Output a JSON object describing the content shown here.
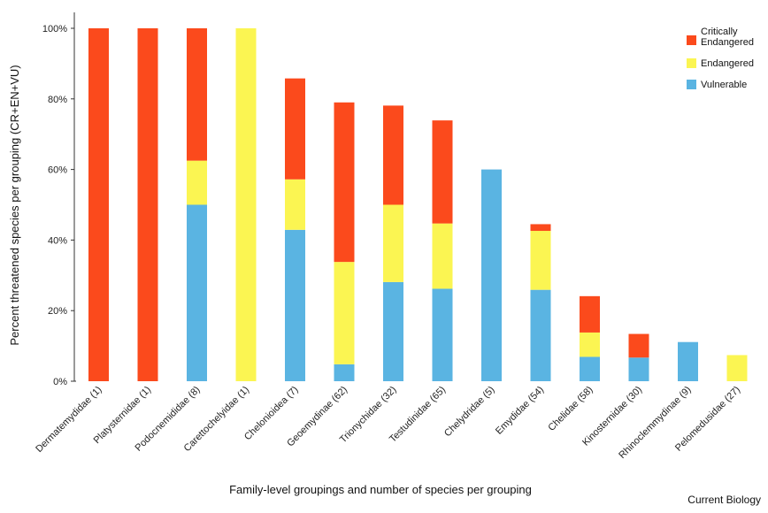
{
  "chart_data": {
    "type": "bar",
    "stacked": true,
    "xlabel": "Family-level groupings and number of species per grouping",
    "ylabel": "Percent threatened species per grouping (CR+EN+VU)",
    "ylim": [
      0,
      100
    ],
    "yticks": [
      "0%",
      "20%",
      "40%",
      "60%",
      "80%",
      "100%"
    ],
    "categories": [
      "Dermatemydidae (1)",
      "Platysternidae (1)",
      "Podocnemididae (8)",
      "Carettochelyidae (1)",
      "Chelonioidea (7)",
      "Geoemydinae (62)",
      "Trionychidae (32)",
      "Testudinidae (65)",
      "Chelydridae (5)",
      "Emydidae (54)",
      "Chelidae (58)",
      "Kinosternidae (30)",
      "Rhinoclemmydinae (9)",
      "Pelomedusidae (27)"
    ],
    "series": [
      {
        "name": "Vulnerable",
        "color": "#5ab4e2",
        "values": [
          0,
          0,
          50,
          0,
          42.9,
          4.8,
          28.1,
          26.2,
          60,
          25.9,
          6.9,
          6.7,
          11.1,
          0
        ]
      },
      {
        "name": "Endangered",
        "color": "#fbf552",
        "values": [
          0,
          0,
          12.5,
          100,
          14.3,
          29,
          21.9,
          18.5,
          0,
          16.7,
          6.9,
          0,
          0,
          7.4
        ]
      },
      {
        "name": "Critically Endangered",
        "color": "#fb4a1c",
        "values": [
          100,
          100,
          37.5,
          0,
          28.6,
          45.2,
          28.1,
          29.2,
          0,
          1.9,
          10.3,
          6.7,
          0,
          0
        ]
      }
    ],
    "legend": {
      "position": "top-right",
      "entries": [
        {
          "lines": [
            "Critically",
            "Endangered"
          ],
          "color": "#fb4a1c"
        },
        {
          "lines": [
            "Endangered"
          ],
          "color": "#fbf552"
        },
        {
          "lines": [
            "Vulnerable"
          ],
          "color": "#5ab4e2"
        }
      ]
    },
    "grid": false
  },
  "credit": "Current Biology"
}
